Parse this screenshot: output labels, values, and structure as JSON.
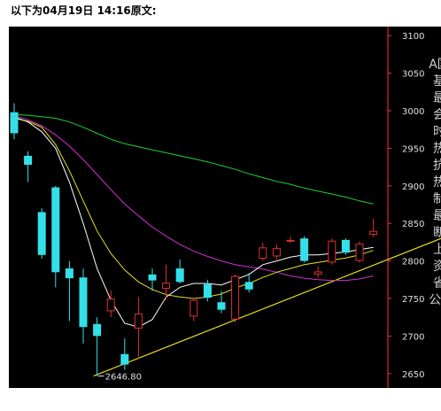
{
  "heading": "以下为04月19日 14:16原文:",
  "side_text": "A国基最会时热抗热制最断上资省公A",
  "colors": {
    "background": "#000000",
    "up": "#e03030",
    "down": "#33e0e8",
    "ma_white": "#ffffff",
    "ma_yellow": "#e8e020",
    "ma_magenta": "#d030d0",
    "ma_green": "#22d030",
    "trendline": "#e8e020",
    "axis": "#ff3030"
  },
  "chart_data": {
    "type": "candlestick",
    "ylim": [
      2645,
      3105
    ],
    "y_ticks": [
      3100,
      3050,
      3000,
      2950,
      2900,
      2850,
      2800,
      2750,
      2700,
      2650
    ],
    "candles": [
      {
        "o": 2998,
        "c": 2970,
        "h": 3010,
        "l": 2962
      },
      {
        "o": 2940,
        "c": 2928,
        "h": 2946,
        "l": 2905
      },
      {
        "o": 2865,
        "c": 2808,
        "h": 2870,
        "l": 2803
      },
      {
        "o": 2898,
        "c": 2785,
        "h": 2900,
        "l": 2765
      },
      {
        "o": 2790,
        "c": 2777,
        "h": 2800,
        "l": 2720
      },
      {
        "o": 2778,
        "c": 2712,
        "h": 2790,
        "l": 2690
      },
      {
        "o": 2716,
        "c": 2700,
        "h": 2725,
        "l": 2646.8
      },
      {
        "o": 2733,
        "c": 2750,
        "h": 2761,
        "l": 2725
      },
      {
        "o": 2676,
        "c": 2662,
        "h": 2697,
        "l": 2655
      },
      {
        "o": 2710,
        "c": 2730,
        "h": 2752,
        "l": 2670
      },
      {
        "o": 2782,
        "c": 2774,
        "h": 2790,
        "l": 2760
      },
      {
        "o": 2763,
        "c": 2771,
        "h": 2795,
        "l": 2748
      },
      {
        "o": 2790,
        "c": 2772,
        "h": 2802,
        "l": 2770
      },
      {
        "o": 2726,
        "c": 2748,
        "h": 2751,
        "l": 2720
      },
      {
        "o": 2769,
        "c": 2751,
        "h": 2775,
        "l": 2746
      },
      {
        "o": 2745,
        "c": 2735,
        "h": 2760,
        "l": 2730
      },
      {
        "o": 2722,
        "c": 2780,
        "h": 2782,
        "l": 2718
      },
      {
        "o": 2772,
        "c": 2762,
        "h": 2784,
        "l": 2758
      },
      {
        "o": 2803,
        "c": 2818,
        "h": 2824,
        "l": 2800
      },
      {
        "o": 2806,
        "c": 2817,
        "h": 2822,
        "l": 2802
      },
      {
        "o": 2826,
        "c": 2828,
        "h": 2833,
        "l": 2824
      },
      {
        "o": 2830,
        "c": 2800,
        "h": 2833,
        "l": 2798
      },
      {
        "o": 2782,
        "c": 2786,
        "h": 2793,
        "l": 2778
      },
      {
        "o": 2798,
        "c": 2827,
        "h": 2830,
        "l": 2795
      },
      {
        "o": 2828,
        "c": 2811,
        "h": 2830,
        "l": 2808
      },
      {
        "o": 2800,
        "c": 2823,
        "h": 2826,
        "l": 2798
      },
      {
        "o": 2835,
        "c": 2840,
        "h": 2856,
        "l": 2832
      }
    ],
    "ma_white": [
      2992,
      2985,
      2972,
      2950,
      2905,
      2850,
      2790,
      2748,
      2717,
      2712,
      2722,
      2752,
      2765,
      2770,
      2770,
      2768,
      2775,
      2782,
      2795,
      2800,
      2805,
      2808,
      2808,
      2810,
      2812,
      2815,
      2818
    ],
    "ma_yellow": [
      2990,
      2986,
      2978,
      2955,
      2920,
      2880,
      2840,
      2810,
      2788,
      2772,
      2762,
      2755,
      2752,
      2750,
      2752,
      2756,
      2764,
      2770,
      2778,
      2785,
      2790,
      2795,
      2798,
      2801,
      2804,
      2808,
      2814
    ],
    "ma_magenta": [
      2994,
      2988,
      2980,
      2968,
      2953,
      2935,
      2915,
      2895,
      2876,
      2860,
      2845,
      2833,
      2822,
      2813,
      2806,
      2800,
      2795,
      2792,
      2789,
      2785,
      2780,
      2777,
      2775,
      2774,
      2774,
      2776,
      2780
    ],
    "ma_green": [
      2995,
      2994,
      2992,
      2990,
      2985,
      2978,
      2970,
      2962,
      2956,
      2952,
      2948,
      2944,
      2940,
      2936,
      2932,
      2927,
      2922,
      2916,
      2911,
      2906,
      2902,
      2897,
      2893,
      2889,
      2885,
      2880,
      2876
    ],
    "trendline": {
      "x0": 5.75,
      "y0": 2646.8,
      "x1": 30.9,
      "y1": 2830
    },
    "low_label": "2646.80"
  }
}
